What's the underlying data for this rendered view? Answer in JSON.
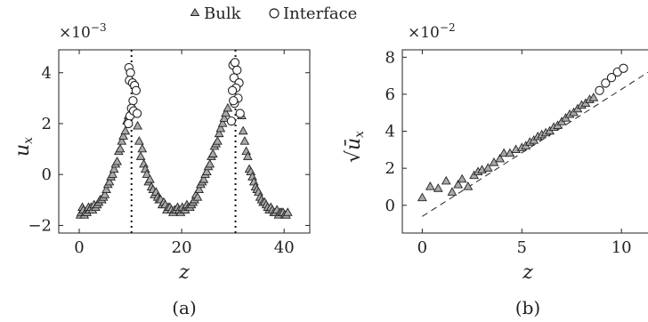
{
  "legend": {
    "bulk": "Bulk",
    "interface": "Interface"
  },
  "chart_data": [
    {
      "id": "a",
      "type": "scatter",
      "caption": "(a)",
      "xlabel": "z",
      "ylabel": "u",
      "ylabel_sub": "x",
      "multiplier": "×10",
      "multiplier_exp": "−3",
      "xlim": [
        -4,
        45
      ],
      "ylim": [
        -2.3,
        4.9
      ],
      "xticks": [
        0,
        20,
        40
      ],
      "yticks": [
        -2,
        0,
        2,
        4
      ],
      "vlines": [
        10.2,
        30.5
      ],
      "series": [
        {
          "name": "Bulk",
          "marker": "triangle",
          "x": [
            0.2,
            0.4,
            0.6,
            0.8,
            1.0,
            1.2,
            1.5,
            1.8,
            2.0,
            2.3,
            2.6,
            2.9,
            3.2,
            3.5,
            3.8,
            4.1,
            4.4,
            4.7,
            5.0,
            5.3,
            5.6,
            5.9,
            6.2,
            6.5,
            6.8,
            7.1,
            7.4,
            7.7,
            8.0,
            8.3,
            8.6,
            9.0,
            9.3,
            9.6,
            11.4,
            11.7,
            12.0,
            12.3,
            12.6,
            12.9,
            13.2,
            13.5,
            13.8,
            14.1,
            14.4,
            14.7,
            15.0,
            15.3,
            15.6,
            15.9,
            16.2,
            16.5,
            16.8,
            17.1,
            17.4,
            17.7,
            18.0,
            18.3,
            18.6,
            18.9,
            19.2,
            19.5,
            19.8,
            20.1,
            20.4,
            20.7,
            21.0,
            21.3,
            21.6,
            21.9,
            22.2,
            22.5,
            22.8,
            23.1,
            23.4,
            23.7,
            24.0,
            24.3,
            24.6,
            24.9,
            25.2,
            25.5,
            25.8,
            26.1,
            26.4,
            26.7,
            27.0,
            27.3,
            27.6,
            28.0,
            28.3,
            28.6,
            29.0,
            31.7,
            32.0,
            32.3,
            32.6,
            32.9,
            33.2,
            33.5,
            33.8,
            34.1,
            34.4,
            34.7,
            35.0,
            35.3,
            35.6,
            35.9,
            36.2,
            36.5,
            36.8,
            37.1,
            37.4,
            37.7,
            38.0,
            38.3,
            38.6,
            38.9,
            39.2,
            39.5,
            39.8,
            40.1,
            40.4,
            40.7
          ],
          "y": [
            -1.6,
            -1.5,
            -1.3,
            -1.4,
            -1.6,
            -1.5,
            -1.5,
            -1.3,
            -1.4,
            -1.3,
            -1.4,
            -1.2,
            -1.3,
            -1.2,
            -1.1,
            -1.0,
            -1.0,
            -0.9,
            -0.8,
            -0.6,
            -0.4,
            -0.3,
            -0.1,
            0.0,
            0.2,
            0.4,
            0.5,
            0.9,
            1.0,
            1.3,
            1.5,
            1.7,
            2.1,
            2.3,
            1.9,
            1.3,
            0.7,
            1.0,
            0.4,
            0.2,
            0.0,
            -0.3,
            -0.2,
            -0.5,
            -0.6,
            -0.8,
            -0.7,
            -0.9,
            -1.0,
            -1.0,
            -1.2,
            -1.1,
            -1.2,
            -1.4,
            -1.3,
            -1.3,
            -1.4,
            -1.5,
            -1.4,
            -1.4,
            -1.3,
            -1.4,
            -1.5,
            -1.3,
            -1.4,
            -1.4,
            -1.2,
            -1.3,
            -1.3,
            -1.2,
            -1.1,
            -1.0,
            -0.8,
            -0.9,
            -0.6,
            -0.4,
            -0.3,
            -0.2,
            0.0,
            0.1,
            0.3,
            0.4,
            0.7,
            0.8,
            1.1,
            1.2,
            1.3,
            1.6,
            1.8,
            2.0,
            2.2,
            2.4,
            2.6,
            2.3,
            1.7,
            1.3,
            0.9,
            0.7,
            0.2,
            0.1,
            -0.1,
            -0.3,
            -0.5,
            -0.6,
            -0.7,
            -0.9,
            -1.0,
            -1.1,
            -1.1,
            -1.2,
            -1.3,
            -1.4,
            -1.3,
            -1.4,
            -1.5,
            -1.5,
            -1.4,
            -1.6,
            -1.5,
            -1.5,
            -1.5,
            -1.6,
            -1.6,
            -1.5
          ]
        },
        {
          "name": "Interface",
          "marker": "circle",
          "x": [
            9.7,
            10.0,
            9.8,
            10.4,
            10.8,
            10.5,
            11.1,
            10.2,
            9.9,
            10.6,
            11.3,
            9.6,
            30.0,
            30.4,
            30.8,
            30.2,
            31.2,
            30.6,
            29.9,
            31.0,
            30.3,
            31.4,
            29.7,
            30.1
          ],
          "y": [
            4.2,
            4.0,
            3.7,
            3.6,
            3.5,
            2.9,
            3.3,
            2.6,
            2.3,
            2.5,
            2.4,
            2.0,
            4.3,
            4.4,
            4.1,
            3.8,
            3.6,
            3.4,
            3.3,
            3.0,
            2.8,
            2.4,
            2.1,
            2.9
          ]
        }
      ]
    },
    {
      "id": "b",
      "type": "scatter",
      "caption": "(b)",
      "xlabel": "z",
      "ylabel": "√ū",
      "ylabel_sub": "x",
      "multiplier": "×10",
      "multiplier_exp": "−2",
      "xlim": [
        -1,
        11.6
      ],
      "ylim": [
        -1.5,
        8.4
      ],
      "xticks": [
        0,
        5,
        10
      ],
      "yticks": [
        0,
        2,
        4,
        6,
        8
      ],
      "fit_line": {
        "x": [
          0,
          11.5
        ],
        "y": [
          -0.6,
          7.3
        ]
      },
      "series": [
        {
          "name": "Bulk",
          "marker": "triangle",
          "x": [
            0.0,
            0.4,
            0.8,
            1.2,
            1.5,
            1.8,
            2.0,
            2.3,
            2.6,
            2.8,
            3.0,
            3.3,
            3.6,
            3.9,
            4.1,
            4.4,
            4.7,
            5.0,
            5.2,
            5.4,
            5.6,
            5.8,
            6.0,
            6.2,
            6.4,
            6.6,
            6.8,
            7.0,
            7.2,
            7.4,
            7.6,
            7.8,
            8.0,
            8.2,
            8.4,
            8.6
          ],
          "y": [
            0.4,
            1.0,
            0.9,
            1.3,
            0.7,
            1.1,
            1.4,
            1.0,
            1.6,
            1.8,
            1.9,
            2.0,
            2.3,
            2.5,
            2.8,
            2.8,
            3.0,
            3.1,
            3.2,
            3.4,
            3.5,
            3.7,
            3.8,
            3.9,
            4.0,
            4.2,
            4.3,
            4.5,
            4.7,
            4.9,
            5.0,
            5.2,
            5.4,
            5.5,
            5.7,
            5.8
          ]
        },
        {
          "name": "Interface",
          "marker": "circle",
          "x": [
            8.9,
            9.2,
            9.5,
            9.8,
            10.1
          ],
          "y": [
            6.2,
            6.6,
            6.9,
            7.2,
            7.4
          ]
        }
      ]
    }
  ]
}
